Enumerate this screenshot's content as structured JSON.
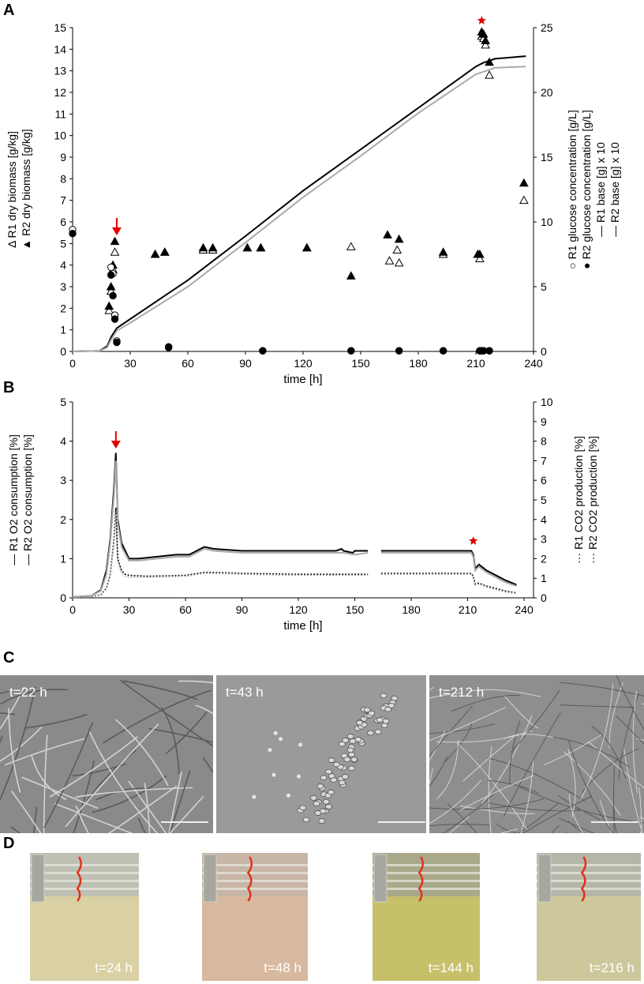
{
  "panels": {
    "a": "A",
    "b": "B",
    "c": "C",
    "d": "D"
  },
  "chart_data": [
    {
      "id": "A",
      "type": "scatter+line",
      "xlabel": "time [h]",
      "xlim": [
        0,
        240
      ],
      "xticks": [
        0,
        30,
        60,
        90,
        120,
        150,
        180,
        210,
        240
      ],
      "ylim": [
        0,
        15
      ],
      "yticks": [
        0,
        1,
        2,
        3,
        4,
        5,
        6,
        7,
        8,
        9,
        10,
        11,
        12,
        13,
        14,
        15
      ],
      "y2lim": [
        0,
        25
      ],
      "y2ticks": [
        0,
        5,
        10,
        15,
        20,
        25
      ],
      "ylabel_lines": [
        "Δ  R1 dry biomass [g/kg]",
        "▲  R2 dry biomass [g/kg]"
      ],
      "y2label_lines": [
        "○ R1 glucose concentration [g/L]",
        "● R2 glucose concentration [g/L]",
        "— R1 base [g] x 10",
        "— R2 base [g] x 10"
      ],
      "markers": {
        "arrow": 23,
        "star": 213
      },
      "series": [
        {
          "name": "R1 dry biomass",
          "marker": "open-triangle",
          "axis": "left",
          "x": [
            19,
            20,
            21,
            22,
            43,
            48,
            68,
            73,
            91,
            98,
            122,
            145,
            165,
            169,
            170,
            193,
            211,
            212,
            213,
            214,
            215,
            217,
            235
          ],
          "y": [
            1.9,
            2.8,
            3.8,
            4.6,
            4.5,
            4.6,
            4.7,
            4.7,
            4.8,
            4.8,
            4.8,
            4.85,
            4.2,
            4.7,
            4.1,
            4.5,
            4.5,
            4.3,
            14.6,
            14.5,
            14.2,
            12.8,
            7.0
          ]
        },
        {
          "name": "R2 dry biomass",
          "marker": "filled-triangle",
          "axis": "left",
          "x": [
            19,
            20,
            21,
            22,
            43,
            48,
            68,
            73,
            91,
            98,
            122,
            145,
            164,
            170,
            193,
            211,
            212,
            213,
            214,
            215,
            217,
            235
          ],
          "y": [
            2.1,
            3.0,
            4.0,
            5.1,
            4.5,
            4.6,
            4.8,
            4.8,
            4.8,
            4.8,
            4.8,
            3.5,
            5.4,
            5.2,
            4.6,
            4.5,
            4.5,
            14.8,
            14.7,
            14.4,
            13.4,
            7.8
          ]
        },
        {
          "name": "R1 glucose concentration",
          "marker": "open-circle",
          "axis": "right",
          "x": [
            0,
            20,
            21,
            22,
            23,
            50,
            99,
            145,
            170,
            193,
            212,
            213,
            214,
            217
          ],
          "y": [
            9.4,
            6.5,
            6.0,
            2.8,
            0.8,
            0.3,
            0.05,
            0.05,
            0.05,
            0.05,
            0.05,
            0.05,
            0.05,
            0.05
          ]
        },
        {
          "name": "R2 glucose concentration",
          "marker": "filled-circle",
          "axis": "right",
          "x": [
            0,
            20,
            21,
            22,
            23,
            50,
            99,
            145,
            170,
            193,
            212,
            213,
            214,
            217
          ],
          "y": [
            9.1,
            5.9,
            4.3,
            2.5,
            0.7,
            0.35,
            0.05,
            0.05,
            0.05,
            0.05,
            0.05,
            0.05,
            0.05,
            0.05
          ]
        },
        {
          "name": "R1 base [g] x 10",
          "style": "line-black",
          "axis": "right",
          "x": [
            0,
            14,
            18,
            20,
            23,
            30,
            60,
            90,
            120,
            150,
            180,
            210,
            214,
            220,
            236
          ],
          "y": [
            0,
            0.05,
            0.4,
            1.1,
            1.8,
            2.5,
            5.5,
            8.9,
            12.4,
            15.6,
            18.8,
            22.0,
            22.3,
            22.6,
            22.8
          ]
        },
        {
          "name": "R2 base [g] x 10",
          "style": "line-grey",
          "axis": "right",
          "x": [
            0,
            14,
            18,
            20,
            23,
            30,
            60,
            90,
            120,
            150,
            180,
            210,
            214,
            220,
            236
          ],
          "y": [
            0,
            0.05,
            0.3,
            0.9,
            1.6,
            2.2,
            5.0,
            8.4,
            11.9,
            15.1,
            18.4,
            21.4,
            21.6,
            21.9,
            22.0
          ]
        }
      ]
    },
    {
      "id": "B",
      "type": "line",
      "xlabel": "time [h]",
      "xlim": [
        0,
        245
      ],
      "xticks": [
        0,
        30,
        60,
        90,
        120,
        150,
        180,
        210,
        240
      ],
      "ylim": [
        0,
        5
      ],
      "yticks": [
        0,
        1,
        2,
        3,
        4,
        5
      ],
      "y2lim": [
        0,
        10
      ],
      "y2ticks": [
        0,
        1,
        2,
        3,
        4,
        5,
        6,
        7,
        8,
        9,
        10
      ],
      "ylabel_lines": [
        "— R1 O2 consumption [%]",
        "— R2 O2 consumption [%]"
      ],
      "y2label_lines": [
        "··· R1 CO2 production [%]",
        "··· R2 CO2 production [%]"
      ],
      "markers": {
        "arrow": 23,
        "star": 213
      },
      "series": [
        {
          "name": "R1 O2 consumption",
          "axis": "left",
          "style": "black",
          "x": [
            0,
            10,
            15,
            18,
            20,
            22,
            23,
            24,
            26,
            30,
            35,
            45,
            55,
            62,
            70,
            75,
            90,
            120,
            140,
            143,
            144,
            149,
            150,
            157,
            158,
            163,
            164,
            180,
            200,
            212,
            213,
            214,
            216,
            220,
            230,
            236
          ],
          "y": [
            0.02,
            0.05,
            0.2,
            0.7,
            1.5,
            2.8,
            3.7,
            2.0,
            1.4,
            1.0,
            1.0,
            1.05,
            1.1,
            1.1,
            1.3,
            1.25,
            1.2,
            1.2,
            1.2,
            1.25,
            1.2,
            1.15,
            1.2,
            1.2,
            null,
            null,
            1.2,
            1.2,
            1.2,
            1.2,
            1.1,
            0.75,
            0.85,
            0.7,
            0.45,
            0.33
          ]
        },
        {
          "name": "R2 O2 consumption",
          "axis": "left",
          "style": "grey",
          "x": [
            0,
            10,
            15,
            18,
            20,
            22,
            23,
            24,
            26,
            30,
            35,
            45,
            55,
            62,
            70,
            75,
            90,
            120,
            140,
            144,
            150,
            157,
            158,
            163,
            164,
            180,
            200,
            212,
            213,
            214,
            216,
            220,
            230,
            236
          ],
          "y": [
            0.02,
            0.05,
            0.18,
            0.6,
            1.4,
            2.6,
            3.5,
            1.9,
            1.3,
            0.95,
            0.95,
            1.0,
            1.05,
            1.05,
            1.25,
            1.2,
            1.15,
            1.15,
            1.15,
            1.15,
            1.1,
            1.15,
            null,
            null,
            1.15,
            1.15,
            1.15,
            1.15,
            1.05,
            0.7,
            0.8,
            0.65,
            0.4,
            0.3
          ]
        },
        {
          "name": "R1 CO2 production",
          "axis": "right",
          "style": "black-dotted",
          "x": [
            0,
            10,
            15,
            18,
            20,
            22,
            23,
            24,
            26,
            28,
            30,
            40,
            60,
            70,
            75,
            90,
            120,
            150,
            157,
            158,
            163,
            164,
            200,
            212,
            213,
            214,
            216,
            220,
            230,
            236
          ],
          "y": [
            0.02,
            0.05,
            0.15,
            0.5,
            1.2,
            3.0,
            4.6,
            2.0,
            1.4,
            1.2,
            1.15,
            1.1,
            1.15,
            1.3,
            1.3,
            1.25,
            1.2,
            1.2,
            1.2,
            null,
            null,
            1.25,
            1.25,
            1.25,
            1.1,
            0.7,
            0.75,
            0.6,
            0.35,
            0.25
          ]
        },
        {
          "name": "R2 CO2 production",
          "axis": "right",
          "style": "grey-dotted",
          "x": [
            0,
            10,
            15,
            18,
            20,
            22,
            23,
            24,
            26,
            28,
            30,
            40,
            60,
            70,
            75,
            90,
            120,
            150,
            157,
            158,
            163,
            164,
            200,
            212,
            213,
            214,
            216,
            220,
            230,
            236
          ],
          "y": [
            0.02,
            0.05,
            0.12,
            0.45,
            1.1,
            2.8,
            4.3,
            1.9,
            1.3,
            1.1,
            1.05,
            1.05,
            1.1,
            1.25,
            1.25,
            1.2,
            1.15,
            1.15,
            1.15,
            null,
            null,
            1.2,
            1.2,
            1.2,
            1.05,
            0.65,
            0.7,
            0.55,
            0.3,
            0.22
          ]
        }
      ]
    }
  ],
  "micrographs": [
    {
      "label": "t=22 h",
      "bg": "#8a8a8a"
    },
    {
      "label": "t=43 h",
      "bg": "#9a9a9a"
    },
    {
      "label": "t=212 h",
      "bg": "#8e8e8e"
    }
  ],
  "photos": [
    {
      "label": "t=24 h",
      "liquid": "#d9d0a4",
      "top": "#bfc0b4"
    },
    {
      "label": "t=48 h",
      "liquid": "#d8b99f",
      "top": "#c7b6a6"
    },
    {
      "label": "t=144 h",
      "liquid": "#c6c06a",
      "top": "#a9a88a"
    },
    {
      "label": "t=216 h",
      "liquid": "#cdc89c",
      "top": "#b5b5a8"
    }
  ]
}
